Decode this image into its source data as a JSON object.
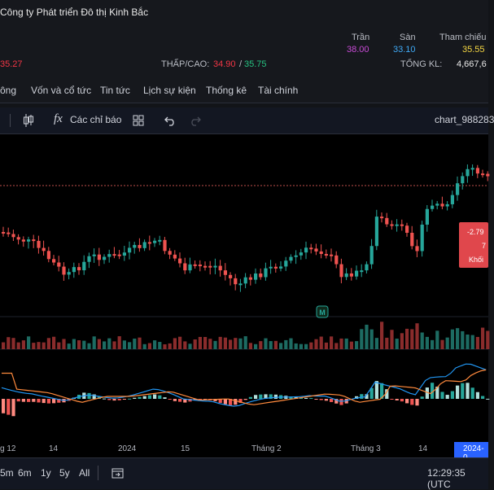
{
  "header": {
    "company": "Công ty Phát triển Đô thị Kinh Bắc",
    "price_partial": "35.27",
    "ceiling_label": "Trần",
    "ceiling_value": "38.00",
    "floor_label": "Sàn",
    "floor_value": "33.10",
    "ref_label": "Tham chiếu",
    "ref_value": "35.55",
    "lowhigh_label": "THẤP/CAO:",
    "low_value": "34.90",
    "sep": "/",
    "high_value": "35.75",
    "volume_label": "TỔNG KL:",
    "volume_value": "4,667,6"
  },
  "tabs": [
    "ông",
    "Vốn và cổ tức",
    "Tin tức",
    "Lịch sự kiện",
    "Thống kê",
    "Tài chính"
  ],
  "toolbar": {
    "indicators_label": "Các chỉ báo",
    "chart_name": "chart_988283"
  },
  "price_badge": {
    "line1": "-2.79",
    "line2": "7",
    "line3": "Khối"
  },
  "marker_label": "M",
  "time_axis": [
    "g 12",
    "14",
    "2024",
    "15",
    "Tháng 2",
    "Tháng 3",
    "14",
    "2024-0"
  ],
  "bottom": {
    "ranges": [
      "5m",
      "6m",
      "1y",
      "5y",
      "All"
    ],
    "time": "12:29:35 (UTC"
  },
  "colors": {
    "up": "#26a69a",
    "down": "#ef5350",
    "ceiling": "#c84bd6",
    "floor": "#3fa9f5",
    "ref": "#f5d742",
    "high": "#26c281",
    "low": "#f23645",
    "highlight": "#2962ff"
  }
}
